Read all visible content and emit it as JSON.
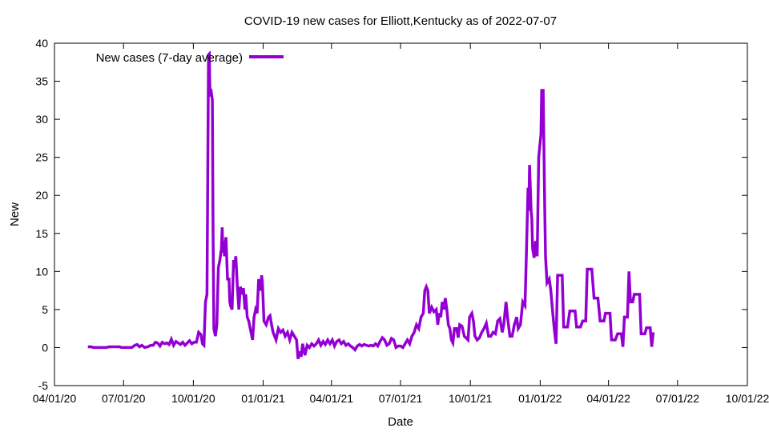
{
  "chart_data": {
    "type": "line",
    "title": "COVID-19 new cases for Elliott,Kentucky as of 2022-07-07",
    "xlabel": "Date",
    "ylabel": "New",
    "ylim": [
      -5,
      40
    ],
    "yticks": [
      -5,
      0,
      5,
      10,
      15,
      20,
      25,
      30,
      35,
      40
    ],
    "xlim": [
      "2020-04-01",
      "2022-10-01"
    ],
    "xticks": [
      {
        "date": "2020-04-01",
        "label": "04/01/20"
      },
      {
        "date": "2020-07-01",
        "label": "07/01/20"
      },
      {
        "date": "2020-10-01",
        "label": "10/01/20"
      },
      {
        "date": "2021-01-01",
        "label": "01/01/21"
      },
      {
        "date": "2021-04-01",
        "label": "04/01/21"
      },
      {
        "date": "2021-07-01",
        "label": "07/01/21"
      },
      {
        "date": "2021-10-01",
        "label": "10/01/21"
      },
      {
        "date": "2022-01-01",
        "label": "01/01/22"
      },
      {
        "date": "2022-04-01",
        "label": "04/01/22"
      },
      {
        "date": "2022-07-01",
        "label": "07/01/22"
      },
      {
        "date": "2022-10-01",
        "label": "10/01/22"
      }
    ],
    "legend": "top-left",
    "grid": false,
    "series": [
      {
        "name": "New cases (7-day average)",
        "color": "#9400d3",
        "points": [
          [
            "2020-05-15",
            0.1
          ],
          [
            "2020-05-20",
            0.1
          ],
          [
            "2020-05-22",
            0
          ],
          [
            "2020-06-01",
            0
          ],
          [
            "2020-06-08",
            0
          ],
          [
            "2020-06-12",
            0.1
          ],
          [
            "2020-06-20",
            0.1
          ],
          [
            "2020-06-26",
            0.1
          ],
          [
            "2020-06-28",
            0
          ],
          [
            "2020-07-05",
            0
          ],
          [
            "2020-07-12",
            0
          ],
          [
            "2020-07-16",
            0.3
          ],
          [
            "2020-07-19",
            0.4
          ],
          [
            "2020-07-22",
            0.1
          ],
          [
            "2020-07-25",
            0.3
          ],
          [
            "2020-07-29",
            0
          ],
          [
            "2020-08-02",
            0.1
          ],
          [
            "2020-08-06",
            0.3
          ],
          [
            "2020-08-09",
            0.3
          ],
          [
            "2020-08-12",
            0.7
          ],
          [
            "2020-08-15",
            0.6
          ],
          [
            "2020-08-18",
            0.2
          ],
          [
            "2020-08-21",
            0.7
          ],
          [
            "2020-08-24",
            0.5
          ],
          [
            "2020-08-27",
            0.6
          ],
          [
            "2020-08-30",
            0.4
          ],
          [
            "2020-09-02",
            1.1
          ],
          [
            "2020-09-05",
            0.3
          ],
          [
            "2020-09-08",
            0.8
          ],
          [
            "2020-09-11",
            0.6
          ],
          [
            "2020-09-14",
            0.4
          ],
          [
            "2020-09-17",
            0.7
          ],
          [
            "2020-09-20",
            0.3
          ],
          [
            "2020-09-23",
            0.6
          ],
          [
            "2020-09-26",
            0.9
          ],
          [
            "2020-09-29",
            0.5
          ],
          [
            "2020-10-02",
            0.7
          ],
          [
            "2020-10-05",
            0.7
          ],
          [
            "2020-10-08",
            2.0
          ],
          [
            "2020-10-11",
            1.7
          ],
          [
            "2020-10-13",
            0.5
          ],
          [
            "2020-10-15",
            0.3
          ],
          [
            "2020-10-17",
            6
          ],
          [
            "2020-10-19",
            7
          ],
          [
            "2020-10-21",
            38.5
          ],
          [
            "2020-10-22",
            38.6
          ],
          [
            "2020-10-23",
            33
          ],
          [
            "2020-10-24",
            34
          ],
          [
            "2020-10-26",
            32.5
          ],
          [
            "2020-10-27",
            15
          ],
          [
            "2020-10-28",
            2.5
          ],
          [
            "2020-10-30",
            1.5
          ],
          [
            "2020-11-01",
            3
          ],
          [
            "2020-11-03",
            10.5
          ],
          [
            "2020-11-05",
            11.5
          ],
          [
            "2020-11-07",
            13
          ],
          [
            "2020-11-08",
            15.8
          ],
          [
            "2020-11-09",
            12.5
          ],
          [
            "2020-11-10",
            14
          ],
          [
            "2020-11-11",
            12
          ],
          [
            "2020-11-13",
            14.5
          ],
          [
            "2020-11-15",
            9
          ],
          [
            "2020-11-17",
            9
          ],
          [
            "2020-11-18",
            6
          ],
          [
            "2020-11-19",
            5.5
          ],
          [
            "2020-11-21",
            5
          ],
          [
            "2020-11-23",
            11.5
          ],
          [
            "2020-11-24",
            10.5
          ],
          [
            "2020-11-26",
            12
          ],
          [
            "2020-11-28",
            8
          ],
          [
            "2020-11-30",
            5
          ],
          [
            "2020-12-02",
            8
          ],
          [
            "2020-12-04",
            7
          ],
          [
            "2020-12-06",
            7.8
          ],
          [
            "2020-12-08",
            5
          ],
          [
            "2020-12-09",
            7
          ],
          [
            "2020-12-11",
            4
          ],
          [
            "2020-12-13",
            3.5
          ],
          [
            "2020-12-15",
            2.5
          ],
          [
            "2020-12-17",
            1.5
          ],
          [
            "2020-12-18",
            1
          ],
          [
            "2020-12-20",
            4
          ],
          [
            "2020-12-22",
            5
          ],
          [
            "2020-12-24",
            4.5
          ],
          [
            "2020-12-26",
            9
          ],
          [
            "2020-12-27",
            8
          ],
          [
            "2020-12-29",
            7.5
          ],
          [
            "2020-12-30",
            9.5
          ],
          [
            "2020-12-31",
            8.5
          ],
          [
            "2021-01-02",
            3.5
          ],
          [
            "2021-01-05",
            3
          ],
          [
            "2021-01-08",
            4
          ],
          [
            "2021-01-10",
            4.2
          ],
          [
            "2021-01-12",
            3
          ],
          [
            "2021-01-14",
            2
          ],
          [
            "2021-01-16",
            1.5
          ],
          [
            "2021-01-18",
            1
          ],
          [
            "2021-01-21",
            2.5
          ],
          [
            "2021-01-24",
            2
          ],
          [
            "2021-01-27",
            2.3
          ],
          [
            "2021-01-30",
            1.5
          ],
          [
            "2021-02-02",
            2
          ],
          [
            "2021-02-05",
            1
          ],
          [
            "2021-02-08",
            2
          ],
          [
            "2021-02-11",
            1.5
          ],
          [
            "2021-02-14",
            1
          ],
          [
            "2021-02-16",
            -1.5
          ],
          [
            "2021-02-18",
            -0.5
          ],
          [
            "2021-02-20",
            -1.2
          ],
          [
            "2021-02-22",
            0.5
          ],
          [
            "2021-02-25",
            -1
          ],
          [
            "2021-02-28",
            0.3
          ],
          [
            "2021-03-03",
            0
          ],
          [
            "2021-03-06",
            0.5
          ],
          [
            "2021-03-09",
            0.2
          ],
          [
            "2021-03-12",
            0.5
          ],
          [
            "2021-03-15",
            1
          ],
          [
            "2021-03-18",
            0.3
          ],
          [
            "2021-03-21",
            0.8
          ],
          [
            "2021-03-24",
            0.4
          ],
          [
            "2021-03-27",
            1
          ],
          [
            "2021-03-30",
            0.5
          ],
          [
            "2021-04-02",
            1
          ],
          [
            "2021-04-05",
            0.2
          ],
          [
            "2021-04-08",
            0.8
          ],
          [
            "2021-04-11",
            1
          ],
          [
            "2021-04-14",
            0.5
          ],
          [
            "2021-04-17",
            0.8
          ],
          [
            "2021-04-20",
            0.3
          ],
          [
            "2021-04-23",
            0.5
          ],
          [
            "2021-04-26",
            0.2
          ],
          [
            "2021-04-29",
            0
          ],
          [
            "2021-05-02",
            -0.3
          ],
          [
            "2021-05-05",
            0.2
          ],
          [
            "2021-05-08",
            0.4
          ],
          [
            "2021-05-11",
            0.2
          ],
          [
            "2021-05-14",
            0.4
          ],
          [
            "2021-05-17",
            0.3
          ],
          [
            "2021-05-20",
            0.2
          ],
          [
            "2021-05-23",
            0.3
          ],
          [
            "2021-05-26",
            0.2
          ],
          [
            "2021-05-29",
            0.5
          ],
          [
            "2021-06-01",
            0.2
          ],
          [
            "2021-06-04",
            0.8
          ],
          [
            "2021-06-07",
            1.3
          ],
          [
            "2021-06-10",
            1
          ],
          [
            "2021-06-13",
            0.3
          ],
          [
            "2021-06-16",
            0.5
          ],
          [
            "2021-06-19",
            1.2
          ],
          [
            "2021-06-22",
            1
          ],
          [
            "2021-06-25",
            0
          ],
          [
            "2021-06-28",
            0.2
          ],
          [
            "2021-07-01",
            0.2
          ],
          [
            "2021-07-04",
            0
          ],
          [
            "2021-07-07",
            0.5
          ],
          [
            "2021-07-10",
            1
          ],
          [
            "2021-07-13",
            0.5
          ],
          [
            "2021-07-16",
            1.5
          ],
          [
            "2021-07-19",
            2
          ],
          [
            "2021-07-22",
            3
          ],
          [
            "2021-07-25",
            2.5
          ],
          [
            "2021-07-28",
            4
          ],
          [
            "2021-07-31",
            4.5
          ],
          [
            "2021-08-02",
            7.5
          ],
          [
            "2021-08-04",
            8
          ],
          [
            "2021-08-06",
            7.5
          ],
          [
            "2021-08-08",
            4.5
          ],
          [
            "2021-08-11",
            5.3
          ],
          [
            "2021-08-14",
            4.7
          ],
          [
            "2021-08-17",
            5
          ],
          [
            "2021-08-19",
            3
          ],
          [
            "2021-08-21",
            4.5
          ],
          [
            "2021-08-23",
            4
          ],
          [
            "2021-08-25",
            6
          ],
          [
            "2021-08-27",
            5
          ],
          [
            "2021-08-29",
            6.5
          ],
          [
            "2021-08-31",
            5
          ],
          [
            "2021-09-02",
            3
          ],
          [
            "2021-09-04",
            2.5
          ],
          [
            "2021-09-06",
            1
          ],
          [
            "2021-09-08",
            0.6
          ],
          [
            "2021-09-10",
            2.5
          ],
          [
            "2021-09-13",
            2.5
          ],
          [
            "2021-09-15",
            1.3
          ],
          [
            "2021-09-17",
            3
          ],
          [
            "2021-09-20",
            2.8
          ],
          [
            "2021-09-23",
            1.5
          ],
          [
            "2021-09-26",
            1.2
          ],
          [
            "2021-09-28",
            1
          ],
          [
            "2021-09-30",
            4
          ],
          [
            "2021-10-03",
            4.5
          ],
          [
            "2021-10-05",
            3.5
          ],
          [
            "2021-10-07",
            1.5
          ],
          [
            "2021-10-10",
            1
          ],
          [
            "2021-10-13",
            1.3
          ],
          [
            "2021-10-16",
            2
          ],
          [
            "2021-10-19",
            2.5
          ],
          [
            "2021-10-22",
            3.2
          ],
          [
            "2021-10-25",
            1.5
          ],
          [
            "2021-10-28",
            1.5
          ],
          [
            "2021-10-31",
            2
          ],
          [
            "2021-11-03",
            1.8
          ],
          [
            "2021-11-06",
            3.5
          ],
          [
            "2021-11-09",
            3.8
          ],
          [
            "2021-11-12",
            2
          ],
          [
            "2021-11-14",
            3
          ],
          [
            "2021-11-17",
            6
          ],
          [
            "2021-11-19",
            4
          ],
          [
            "2021-11-22",
            1.5
          ],
          [
            "2021-11-25",
            1.5
          ],
          [
            "2021-11-28",
            3
          ],
          [
            "2021-12-01",
            4
          ],
          [
            "2021-12-03",
            2.5
          ],
          [
            "2021-12-06",
            3
          ],
          [
            "2021-12-09",
            6
          ],
          [
            "2021-12-12",
            5.5
          ],
          [
            "2021-12-14",
            13
          ],
          [
            "2021-12-16",
            21
          ],
          [
            "2021-12-17",
            18
          ],
          [
            "2021-12-18",
            24
          ],
          [
            "2021-12-20",
            18
          ],
          [
            "2021-12-21",
            17
          ],
          [
            "2021-12-22",
            13
          ],
          [
            "2021-12-24",
            11.8
          ],
          [
            "2021-12-26",
            14
          ],
          [
            "2021-12-28",
            12
          ],
          [
            "2021-12-30",
            25
          ],
          [
            "2022-01-02",
            28
          ],
          [
            "2022-01-03",
            33.8
          ],
          [
            "2022-01-05",
            33.8
          ],
          [
            "2022-01-07",
            18.5
          ],
          [
            "2022-01-08",
            12
          ],
          [
            "2022-01-10",
            8.5
          ],
          [
            "2022-01-13",
            9
          ],
          [
            "2022-01-15",
            7.5
          ],
          [
            "2022-01-18",
            4
          ],
          [
            "2022-01-20",
            2
          ],
          [
            "2022-01-22",
            0.5
          ],
          [
            "2022-01-24",
            9.5
          ],
          [
            "2022-01-27",
            9.5
          ],
          [
            "2022-01-30",
            9.5
          ],
          [
            "2022-02-01",
            2.7
          ],
          [
            "2022-02-06",
            2.7
          ],
          [
            "2022-02-09",
            4.8
          ],
          [
            "2022-02-16",
            4.8
          ],
          [
            "2022-02-18",
            2.7
          ],
          [
            "2022-02-23",
            2.7
          ],
          [
            "2022-02-26",
            3.5
          ],
          [
            "2022-03-02",
            3.5
          ],
          [
            "2022-03-04",
            10.3
          ],
          [
            "2022-03-10",
            10.3
          ],
          [
            "2022-03-13",
            6.5
          ],
          [
            "2022-03-18",
            6.5
          ],
          [
            "2022-03-21",
            3.5
          ],
          [
            "2022-03-26",
            3.5
          ],
          [
            "2022-03-28",
            4.5
          ],
          [
            "2022-04-03",
            4.5
          ],
          [
            "2022-04-05",
            1.0
          ],
          [
            "2022-04-10",
            1.0
          ],
          [
            "2022-04-13",
            1.8
          ],
          [
            "2022-04-18",
            1.8
          ],
          [
            "2022-04-20",
            0.1
          ],
          [
            "2022-04-22",
            4
          ],
          [
            "2022-04-26",
            4
          ],
          [
            "2022-04-28",
            10
          ],
          [
            "2022-04-30",
            6
          ],
          [
            "2022-05-03",
            6
          ],
          [
            "2022-05-05",
            7
          ],
          [
            "2022-05-12",
            7
          ],
          [
            "2022-05-14",
            1.8
          ],
          [
            "2022-05-19",
            1.8
          ],
          [
            "2022-05-21",
            2.6
          ],
          [
            "2022-05-26",
            2.6
          ],
          [
            "2022-05-28",
            0.1
          ],
          [
            "2022-05-30",
            2
          ]
        ]
      }
    ]
  }
}
